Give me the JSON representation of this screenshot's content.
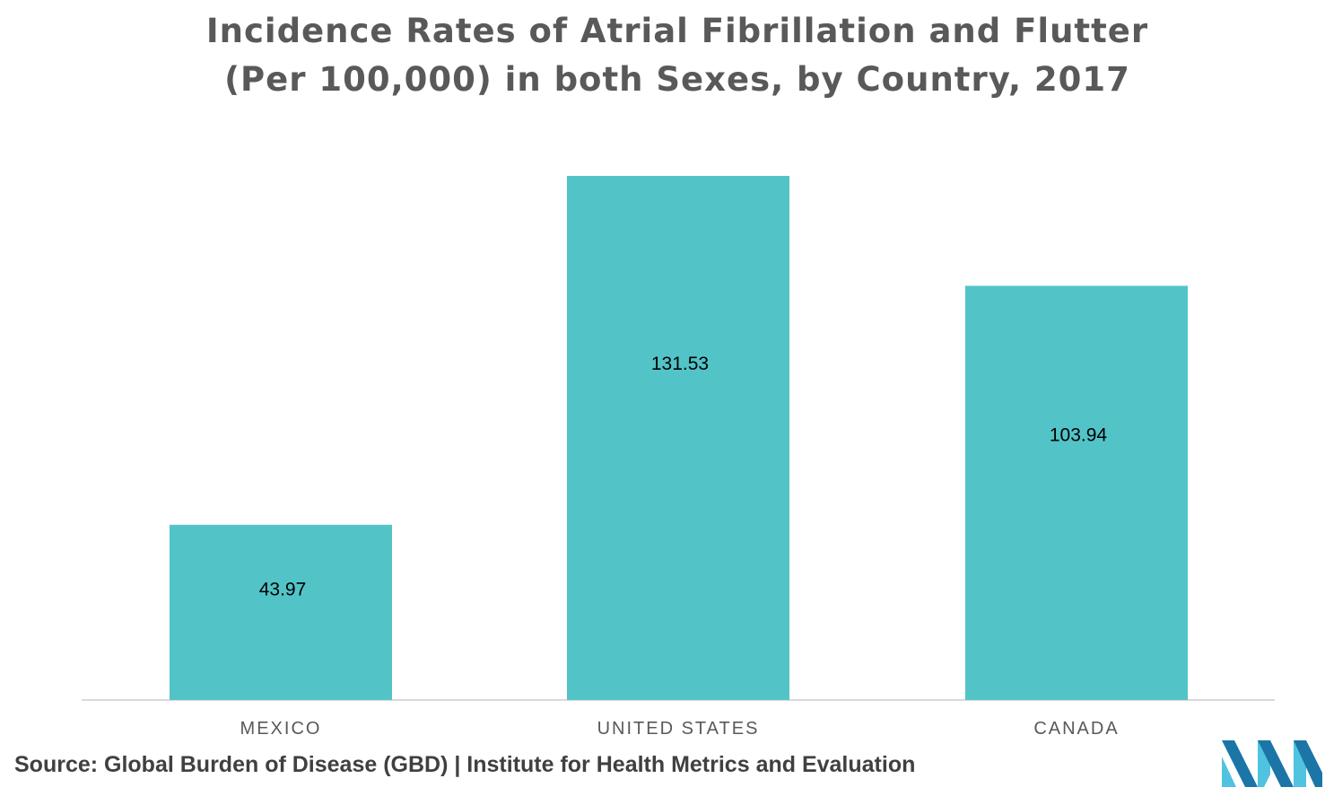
{
  "chart_data": {
    "type": "bar",
    "title_lines": [
      "Incidence Rates of Atrial Fibrillation and Flutter",
      "(Per 100,000) in both Sexes, by Country, 2017"
    ],
    "categories": [
      "MEXICO",
      "UNITED STATES",
      "CANADA"
    ],
    "values": [
      43.97,
      131.53,
      103.94
    ],
    "data_labels": [
      "43.97",
      "131.53",
      "103.94"
    ],
    "ylim": [
      0,
      131.53
    ],
    "xlabel": "",
    "ylabel": "",
    "grid": false,
    "legend": "none",
    "bar_color": "#52C4C8",
    "axis_color": "#D9D9D9"
  },
  "source": "Source: Global Burden of Disease (GBD) | Institute for Health Metrics and Evaluation",
  "logo": {
    "icon": "mordor-logo-icon",
    "colors": [
      "#1B75A6",
      "#4FC3E0"
    ]
  }
}
